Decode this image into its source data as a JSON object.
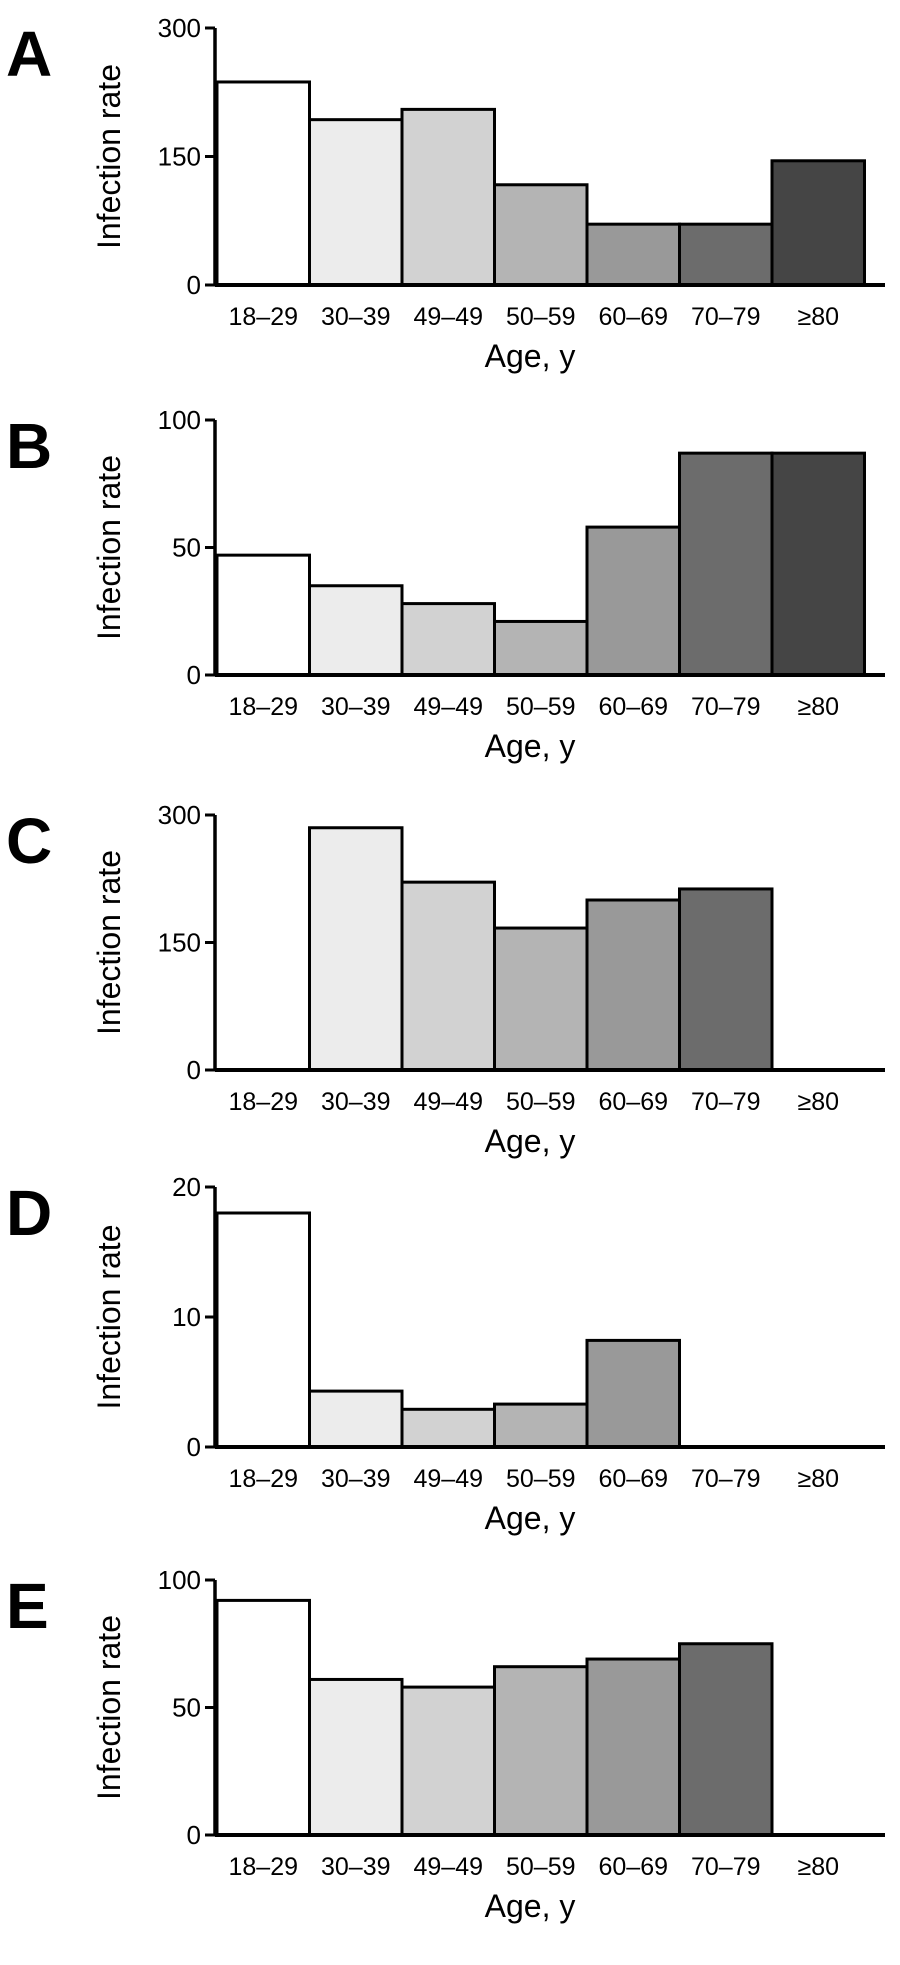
{
  "chart_data": [
    {
      "type": "bar",
      "panel": "A",
      "categories": [
        "18–29",
        "30–39",
        "49–49",
        "50–59",
        "60–69",
        "70–79",
        "≥80"
      ],
      "values": [
        237,
        193,
        205,
        117,
        71,
        71,
        145
      ],
      "ylim": [
        0,
        300
      ],
      "yticks": [
        0,
        150,
        300
      ],
      "xlabel": "Age, y",
      "ylabel": "Infection rate",
      "colors": [
        "#ffffff",
        "#ececec",
        "#d2d2d2",
        "#b4b4b4",
        "#999999",
        "#6c6c6c",
        "#454545"
      ]
    },
    {
      "type": "bar",
      "panel": "B",
      "categories": [
        "18–29",
        "30–39",
        "49–49",
        "50–59",
        "60–69",
        "70–79",
        "≥80"
      ],
      "values": [
        47,
        35,
        28,
        21,
        58,
        87,
        87
      ],
      "ylim": [
        0,
        100
      ],
      "yticks": [
        0,
        50,
        100
      ],
      "xlabel": "Age, y",
      "ylabel": "Infection rate",
      "colors": [
        "#ffffff",
        "#ececec",
        "#d2d2d2",
        "#b4b4b4",
        "#999999",
        "#6c6c6c",
        "#454545"
      ]
    },
    {
      "type": "bar",
      "panel": "C",
      "categories": [
        "18–29",
        "30–39",
        "49–49",
        "50–59",
        "60–69",
        "70–79",
        "≥80"
      ],
      "values": [
        0,
        285,
        221,
        167,
        200,
        213,
        0
      ],
      "ylim": [
        0,
        300
      ],
      "yticks": [
        0,
        150,
        300
      ],
      "xlabel": "Age, y",
      "ylabel": "Infection rate",
      "colors": [
        "#ffffff",
        "#ececec",
        "#d2d2d2",
        "#b4b4b4",
        "#999999",
        "#6c6c6c",
        "#454545"
      ]
    },
    {
      "type": "bar",
      "panel": "D",
      "categories": [
        "18–29",
        "30–39",
        "49–49",
        "50–59",
        "60–69",
        "70–79",
        "≥80"
      ],
      "values": [
        18,
        4.3,
        2.9,
        3.3,
        8.2,
        0,
        0
      ],
      "ylim": [
        0,
        20
      ],
      "yticks": [
        0,
        10,
        20
      ],
      "xlabel": "Age, y",
      "ylabel": "Infection rate",
      "colors": [
        "#ffffff",
        "#ececec",
        "#d2d2d2",
        "#b4b4b4",
        "#999999",
        "#6c6c6c",
        "#454545"
      ]
    },
    {
      "type": "bar",
      "panel": "E",
      "categories": [
        "18–29",
        "30–39",
        "49–49",
        "50–59",
        "60–69",
        "70–79",
        "≥80"
      ],
      "values": [
        92,
        61,
        58,
        66,
        69,
        75,
        0
      ],
      "ylim": [
        0,
        100
      ],
      "yticks": [
        0,
        50,
        100
      ],
      "xlabel": "Age, y",
      "ylabel": "Infection rate",
      "colors": [
        "#ffffff",
        "#ececec",
        "#d2d2d2",
        "#b4b4b4",
        "#999999",
        "#6c6c6c",
        "#454545"
      ]
    }
  ]
}
